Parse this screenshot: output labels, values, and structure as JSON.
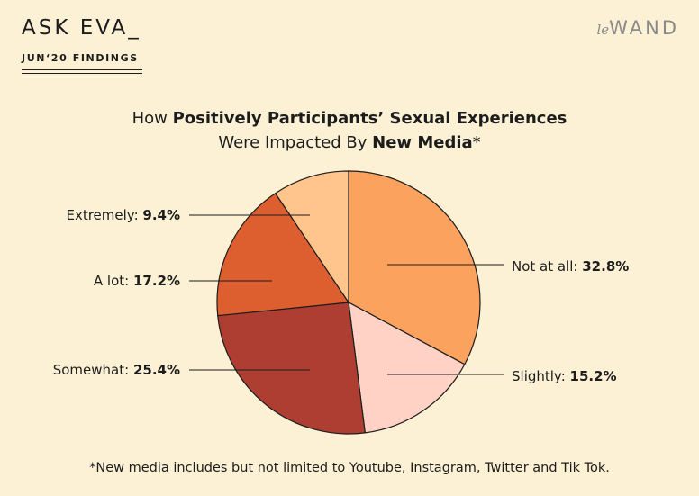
{
  "header": {
    "brand": "ASK EVA_",
    "subtitle": "JUN‘20 FINDINGS",
    "logo_prefix": "le",
    "logo_name": "WAND"
  },
  "title": {
    "line1_pre": "How ",
    "line1_bold": "Positively Participants’ Sexual Experiences",
    "line2_pre": "Were Impacted By ",
    "line2_bold": "New Media",
    "line2_post": "*"
  },
  "footnote": "*New media includes but not limited to Youtube, Instagram, Twitter and Tik Tok.",
  "colors": {
    "background": "#fcf1d4",
    "outline": "#1c1c1c"
  },
  "chart_data": {
    "type": "pie",
    "start": "12 o'clock",
    "direction": "clockwise",
    "slices": [
      {
        "label": "Not at all",
        "value": 32.8,
        "value_text": "32.8%",
        "color": "#fba25e",
        "side": "right"
      },
      {
        "label": "Slightly",
        "value": 15.2,
        "value_text": "15.2%",
        "color": "#ffd2c5",
        "side": "right"
      },
      {
        "label": "Somewhat",
        "value": 25.4,
        "value_text": "25.4%",
        "color": "#ae3e32",
        "side": "left"
      },
      {
        "label": "A lot",
        "value": 17.2,
        "value_text": "17.2%",
        "color": "#dd5f2f",
        "side": "left"
      },
      {
        "label": "Extremely",
        "value": 9.4,
        "value_text": "9.4%",
        "color": "#ffc58c",
        "side": "left"
      }
    ]
  }
}
